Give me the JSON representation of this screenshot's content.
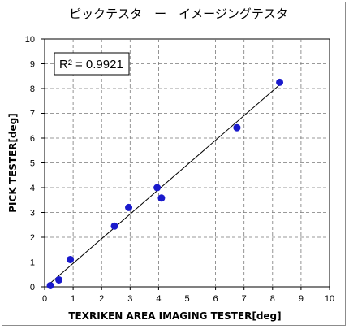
{
  "chart_data": {
    "type": "scatter",
    "title": "ピックテスタ　ー　イメージングテスタ",
    "xlabel": "TEXRIKEN   AREA IMAGING TESTER[deg]",
    "ylabel": "PICK TESTER[deg]",
    "xlim": [
      0,
      10
    ],
    "ylim": [
      0,
      10
    ],
    "xticks": [
      0,
      1,
      2,
      3,
      4,
      5,
      6,
      7,
      8,
      9,
      10
    ],
    "yticks": [
      0,
      1,
      2,
      3,
      4,
      5,
      6,
      7,
      8,
      9,
      10
    ],
    "grid": true,
    "grid_style": "dashed",
    "annotation": "R² = 0.9921",
    "marker_color": "#1a1acc",
    "points": [
      {
        "x": 0.2,
        "y": 0.05
      },
      {
        "x": 0.5,
        "y": 0.28
      },
      {
        "x": 0.9,
        "y": 1.1
      },
      {
        "x": 2.45,
        "y": 2.45
      },
      {
        "x": 2.95,
        "y": 3.2
      },
      {
        "x": 3.95,
        "y": 4.0
      },
      {
        "x": 4.1,
        "y": 3.58
      },
      {
        "x": 6.75,
        "y": 6.42
      },
      {
        "x": 8.25,
        "y": 8.25
      }
    ],
    "trendline": {
      "x": [
        0.1,
        8.3
      ],
      "y": [
        0.05,
        8.2
      ]
    }
  }
}
